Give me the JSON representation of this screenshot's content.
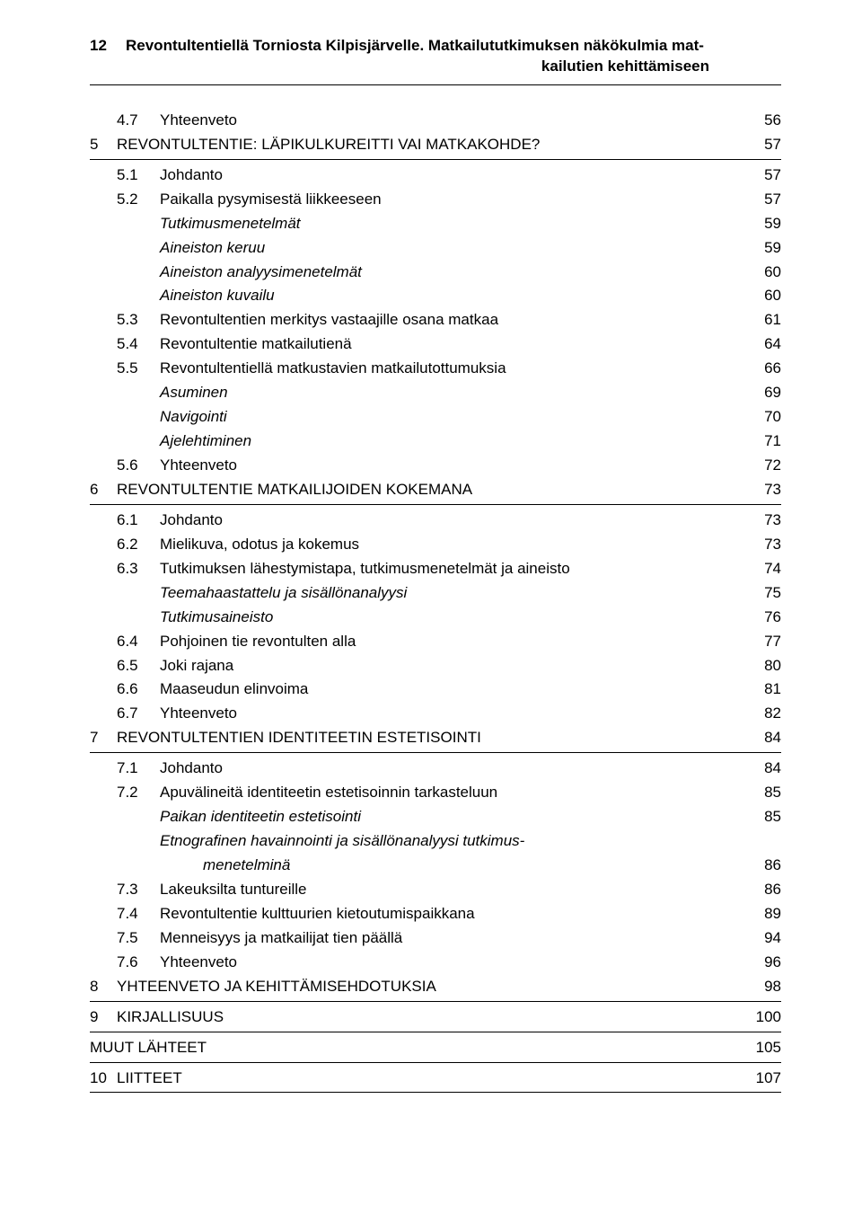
{
  "header": {
    "pageNumber": "12",
    "titleLine1": "Revontultentiellä Torniosta Kilpisjärvelle. Matkailututkimuksen näkökulmia mat-",
    "titleLine2": "kailutien kehittämiseen"
  },
  "rows": [
    {
      "ch": "",
      "sub": "4.7",
      "title": "Yhteenveto",
      "page": "56",
      "style": "sub"
    },
    {
      "ch": "5",
      "sub": "",
      "title": "REVONTULTENTIE: LÄPIKULKUREITTI VAI MATKAKOHDE?",
      "page": "57",
      "style": "chapter",
      "border": true
    },
    {
      "ch": "",
      "sub": "5.1",
      "title": "Johdanto",
      "page": "57",
      "style": "sub"
    },
    {
      "ch": "",
      "sub": "5.2",
      "title": "Paikalla pysymisestä liikkeeseen",
      "page": "57",
      "style": "sub"
    },
    {
      "ch": "",
      "sub": "",
      "title": "Tutkimusmenetelmät",
      "page": "59",
      "style": "italic"
    },
    {
      "ch": "",
      "sub": "",
      "title": "Aineiston keruu",
      "page": "59",
      "style": "italic"
    },
    {
      "ch": "",
      "sub": "",
      "title": "Aineiston analyysimenetelmät",
      "page": "60",
      "style": "italic"
    },
    {
      "ch": "",
      "sub": "",
      "title": "Aineiston kuvailu",
      "page": "60",
      "style": "italic"
    },
    {
      "ch": "",
      "sub": "5.3",
      "title": "Revontultentien merkitys vastaajille osana matkaa",
      "page": "61",
      "style": "sub"
    },
    {
      "ch": "",
      "sub": "5.4",
      "title": "Revontultentie matkailutienä",
      "page": "64",
      "style": "sub"
    },
    {
      "ch": "",
      "sub": "5.5",
      "title": "Revontultentiellä matkustavien matkailutottumuksia",
      "page": "66",
      "style": "sub"
    },
    {
      "ch": "",
      "sub": "",
      "title": "Asuminen",
      "page": "69",
      "style": "italic"
    },
    {
      "ch": "",
      "sub": "",
      "title": "Navigointi",
      "page": "70",
      "style": "italic"
    },
    {
      "ch": "",
      "sub": "",
      "title": "Ajelehtiminen",
      "page": "71",
      "style": "italic"
    },
    {
      "ch": "",
      "sub": "5.6",
      "title": "Yhteenveto",
      "page": "72",
      "style": "sub"
    },
    {
      "ch": "6",
      "sub": "",
      "title": "REVONTULTENTIE MATKAILIJOIDEN KOKEMANA",
      "page": "73",
      "style": "chapter",
      "border": true
    },
    {
      "ch": "",
      "sub": "6.1",
      "title": "Johdanto",
      "page": "73",
      "style": "sub"
    },
    {
      "ch": "",
      "sub": "6.2",
      "title": "Mielikuva, odotus ja kokemus",
      "page": "73",
      "style": "sub"
    },
    {
      "ch": "",
      "sub": "6.3",
      "title": "Tutkimuksen lähestymistapa, tutkimusmenetelmät ja aineisto",
      "page": "74",
      "style": "sub"
    },
    {
      "ch": "",
      "sub": "",
      "title": "Teemahaastattelu ja sisällönanalyysi",
      "page": "75",
      "style": "italic"
    },
    {
      "ch": "",
      "sub": "",
      "title": "Tutkimusaineisto",
      "page": "76",
      "style": "italic"
    },
    {
      "ch": "",
      "sub": "6.4",
      "title": "Pohjoinen tie revontulten alla",
      "page": "77",
      "style": "sub"
    },
    {
      "ch": "",
      "sub": "6.5",
      "title": "Joki rajana",
      "page": "80",
      "style": "sub"
    },
    {
      "ch": "",
      "sub": "6.6",
      "title": "Maaseudun elinvoima",
      "page": "81",
      "style": "sub"
    },
    {
      "ch": "",
      "sub": "6.7",
      "title": "Yhteenveto",
      "page": "82",
      "style": "sub"
    },
    {
      "ch": "7",
      "sub": "",
      "title": "REVONTULTENTIEN IDENTITEETIN ESTETISOINTI",
      "page": "84",
      "style": "chapter",
      "border": true
    },
    {
      "ch": "",
      "sub": "7.1",
      "title": "Johdanto",
      "page": "84",
      "style": "sub"
    },
    {
      "ch": "",
      "sub": "7.2",
      "title": "Apuvälineitä identiteetin estetisoinnin tarkasteluun",
      "page": "85",
      "style": "sub"
    },
    {
      "ch": "",
      "sub": "",
      "title": "Paikan identiteetin estetisointi",
      "page": "85",
      "style": "italic"
    },
    {
      "ch": "",
      "sub": "",
      "title": "Etnografinen havainnointi ja sisällönanalyysi tutkimus-",
      "page": "",
      "style": "italic"
    },
    {
      "ch": "",
      "sub": "",
      "title": "menetelminä",
      "page": "86",
      "style": "deep-italic"
    },
    {
      "ch": "",
      "sub": "7.3",
      "title": "Lakeuksilta tuntureille",
      "page": "86",
      "style": "sub"
    },
    {
      "ch": "",
      "sub": "7.4",
      "title": "Revontultentie kulttuurien kietoutumispaikkana",
      "page": "89",
      "style": "sub"
    },
    {
      "ch": "",
      "sub": "7.5",
      "title": "Menneisyys ja matkailijat tien päällä",
      "page": "94",
      "style": "sub"
    },
    {
      "ch": "",
      "sub": "7.6",
      "title": "Yhteenveto",
      "page": "96",
      "style": "sub"
    },
    {
      "ch": "8",
      "sub": "",
      "title": "YHTEENVETO JA KEHITTÄMISEHDOTUKSIA",
      "page": "98",
      "style": "chapter",
      "border": true
    },
    {
      "ch": "9",
      "sub": "",
      "title": "KIRJALLISUUS",
      "page": "100",
      "style": "chapter",
      "border": true
    },
    {
      "ch": "",
      "sub": "",
      "title": "MUUT LÄHTEET",
      "page": "105",
      "style": "plain",
      "border": true,
      "flush": true
    },
    {
      "ch": "10",
      "sub": "",
      "title": "LIITTEET",
      "page": "107",
      "style": "chapter",
      "border": true
    }
  ]
}
